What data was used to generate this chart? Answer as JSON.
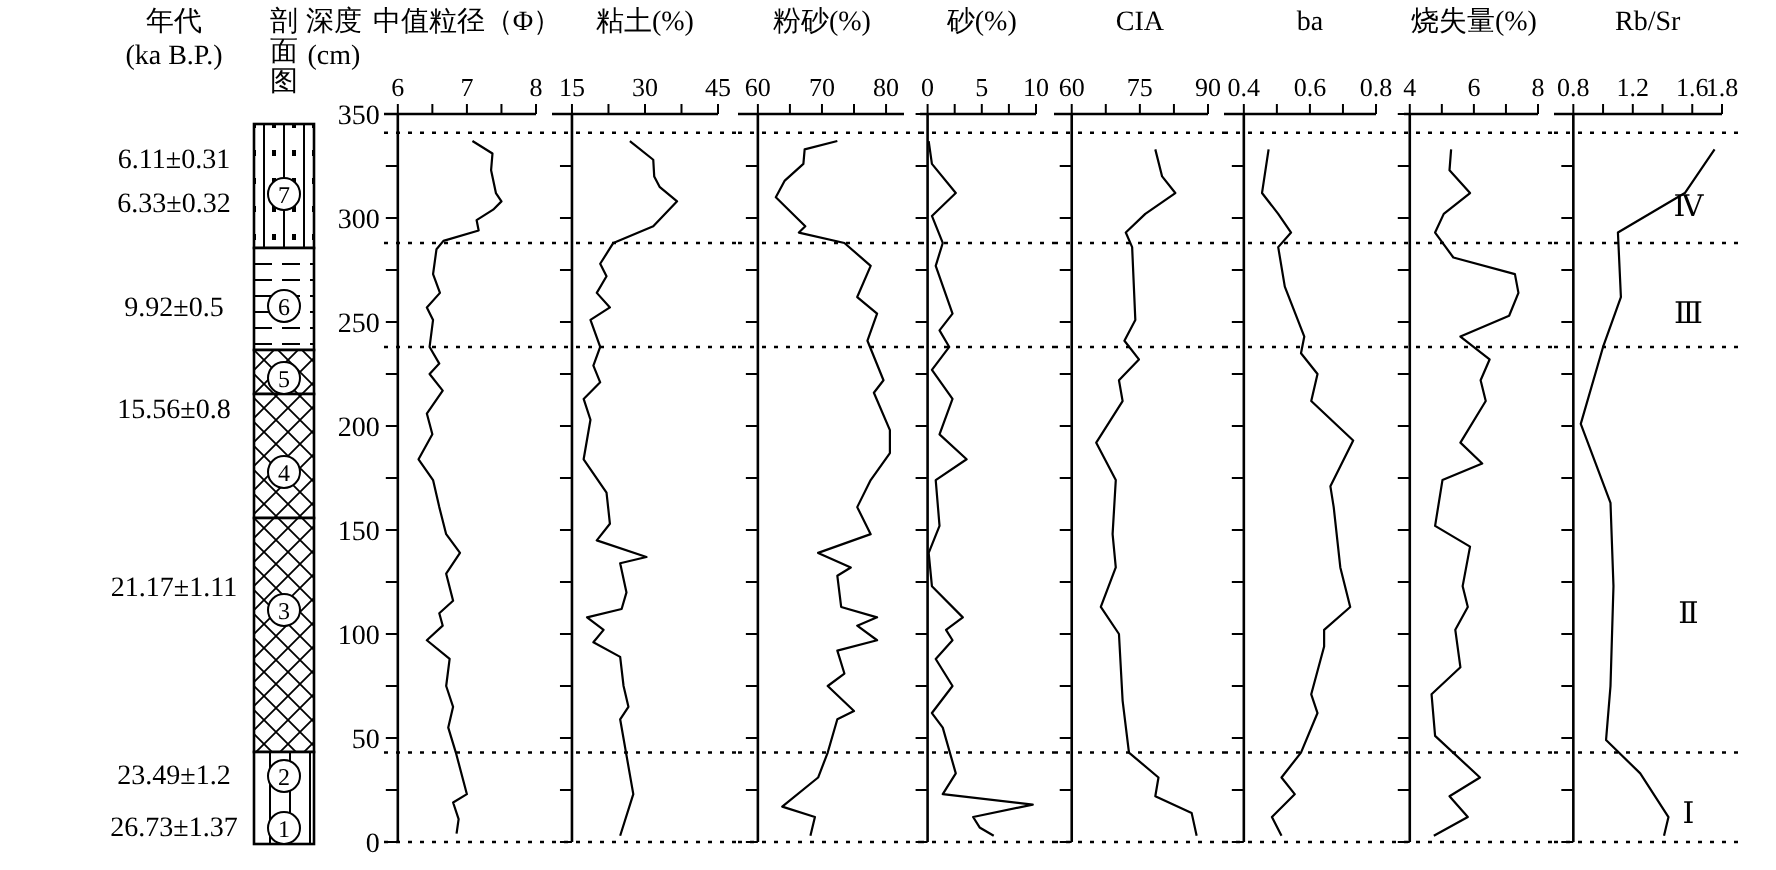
{
  "chart_data": [
    {
      "type": "other",
      "title": "年代\n(ka B.P.)",
      "annotations": [
        "6.11±0.31",
        "6.33±0.32",
        "9.92±0.5",
        "15.56±0.8",
        "21.17±1.11",
        "23.49±1.2",
        "26.73±1.37"
      ]
    },
    {
      "type": "other",
      "title": "剖面图",
      "annotations": [
        "7",
        "6",
        "5",
        "4",
        "3",
        "2",
        "1"
      ]
    },
    {
      "type": "line",
      "title": "中值粒径（Φ）",
      "ylabel": "深度\n(cm)",
      "xlim": [
        5.8,
        8
      ],
      "ylim": [
        0,
        350
      ],
      "xticks": [
        6,
        {
          "value": 6.5,
          "label": null
        },
        7,
        {
          "value": 7.5,
          "label": null
        },
        8
      ],
      "yticks": [
        0,
        {
          "value": 25,
          "label": null
        },
        50,
        {
          "value": 75,
          "label": null
        },
        100,
        {
          "value": 125,
          "label": null
        },
        150,
        {
          "value": 175,
          "label": null
        },
        200,
        {
          "value": 225,
          "label": null
        },
        250,
        {
          "value": 275,
          "label": null
        },
        300,
        {
          "value": 325,
          "label": null
        },
        350
      ],
      "ref_lines": [
        {
          "axis": "y",
          "value": 341
        },
        {
          "axis": "y",
          "value": 288
        },
        {
          "axis": "y",
          "value": 238
        },
        {
          "axis": "y",
          "value": 43
        },
        {
          "axis": "y",
          "value": 0
        }
      ],
      "x": [
        7.08,
        7.37,
        7.35,
        7.42,
        7.5,
        7.38,
        7.14,
        7.17,
        6.66,
        6.56,
        6.51,
        6.61,
        6.42,
        6.51,
        6.46,
        6.6,
        6.46,
        6.65,
        6.42,
        6.5,
        6.3,
        6.51,
        6.6,
        6.7,
        6.9,
        6.7,
        6.8,
        6.6,
        6.65,
        6.42,
        6.75,
        6.7,
        6.8,
        6.73,
        6.84,
        7.0,
        6.8,
        6.88,
        6.85
      ],
      "values": [
        337,
        331,
        323,
        312,
        308,
        304,
        299,
        294,
        289,
        285,
        273,
        264,
        257,
        251,
        238,
        230,
        225,
        217,
        206,
        196,
        184,
        174,
        161,
        148,
        139,
        129,
        116,
        110,
        104,
        97,
        88,
        75,
        65,
        55,
        43,
        23,
        19,
        11,
        4
      ]
    },
    {
      "type": "line",
      "title": "粘土(%)",
      "tick_labels": "x",
      "xlim": [
        10.9,
        45
      ],
      "ylim": [
        0,
        350
      ],
      "xticks": [
        15,
        {
          "value": 22.5,
          "label": null
        },
        30,
        {
          "value": 37.5,
          "label": null
        },
        45
      ],
      "yticks": [
        0,
        {
          "value": 25,
          "label": null
        },
        50,
        {
          "value": 75,
          "label": null
        },
        100,
        {
          "value": 125,
          "label": null
        },
        150,
        {
          "value": 175,
          "label": null
        },
        200,
        {
          "value": 225,
          "label": null
        },
        250,
        {
          "value": 275,
          "label": null
        },
        300,
        {
          "value": 325,
          "label": null
        },
        350
      ],
      "ref_lines": [
        {
          "axis": "y",
          "value": 341
        },
        {
          "axis": "y",
          "value": 288
        },
        {
          "axis": "y",
          "value": 238
        },
        {
          "axis": "y",
          "value": 43
        },
        {
          "axis": "y",
          "value": 0
        }
      ],
      "x": [
        26.9,
        31.7,
        31.9,
        33,
        36.6,
        31.7,
        23.5,
        20.8,
        22.1,
        20.1,
        22.8,
        18.8,
        20.8,
        19.4,
        20.8,
        17.4,
        18.8,
        17.4,
        22.1,
        22.8,
        20.1,
        30.3,
        24.9,
        26.2,
        25.2,
        18.1,
        21.5,
        19.4,
        24.9,
        25.6,
        26.6,
        24.9,
        27.6,
        24.9
      ],
      "values": [
        337,
        328,
        320,
        315,
        308,
        296,
        288,
        278,
        272,
        264,
        257,
        251,
        238,
        229,
        221,
        213,
        203,
        184,
        168,
        153,
        145,
        137,
        134,
        120,
        112,
        108,
        102,
        96,
        89,
        75,
        65,
        59,
        23,
        3
      ]
    },
    {
      "type": "line",
      "title": "粉砂(%)",
      "tick_labels": "x",
      "xlim": [
        56.9,
        82.8
      ],
      "ylim": [
        0,
        350
      ],
      "xticks": [
        60,
        {
          "value": 65,
          "label": null
        },
        70,
        {
          "value": 75,
          "label": null
        },
        80
      ],
      "yticks": [
        0,
        {
          "value": 25,
          "label": null
        },
        50,
        {
          "value": 75,
          "label": null
        },
        100,
        {
          "value": 125,
          "label": null
        },
        150,
        {
          "value": 175,
          "label": null
        },
        200,
        {
          "value": 225,
          "label": null
        },
        250,
        {
          "value": 275,
          "label": null
        },
        300,
        {
          "value": 325,
          "label": null
        },
        350
      ],
      "ref_lines": [
        {
          "axis": "y",
          "value": 341
        },
        {
          "axis": "y",
          "value": 288
        },
        {
          "axis": "y",
          "value": 238
        },
        {
          "axis": "y",
          "value": 43
        },
        {
          "axis": "y",
          "value": 0
        }
      ],
      "x": [
        72.4,
        67.3,
        67.1,
        64.2,
        62.8,
        67.4,
        66.4,
        73.5,
        77.6,
        75.5,
        78.6,
        77.1,
        79.6,
        78.1,
        80.6,
        80.6,
        77.6,
        75.5,
        77.6,
        69.4,
        74.5,
        72.4,
        73,
        78.6,
        75.5,
        78.6,
        72.4,
        73.5,
        70.9,
        75,
        72.4,
        70.9,
        69.4,
        63.8,
        68.9,
        68.2
      ],
      "values": [
        337,
        333,
        326,
        318,
        310,
        296,
        293,
        288,
        277,
        262,
        254,
        241,
        222,
        216,
        198,
        187,
        174,
        161,
        148,
        139,
        132,
        128,
        113,
        108,
        104,
        97,
        92,
        81,
        75,
        63,
        59,
        43,
        31,
        17,
        12,
        3
      ]
    },
    {
      "type": "line",
      "title": "砂(%)",
      "tick_labels": "x",
      "xlim": [
        -0.7,
        10
      ],
      "ylim": [
        0,
        350
      ],
      "xticks": [
        0,
        {
          "value": 2.5,
          "label": null
        },
        5,
        {
          "value": 7.5,
          "label": null
        },
        10
      ],
      "yticks": [
        0,
        {
          "value": 25,
          "label": null
        },
        50,
        {
          "value": 75,
          "label": null
        },
        100,
        {
          "value": 125,
          "label": null
        },
        150,
        {
          "value": 175,
          "label": null
        },
        200,
        {
          "value": 225,
          "label": null
        },
        250,
        {
          "value": 275,
          "label": null
        },
        300,
        {
          "value": 325,
          "label": null
        },
        350
      ],
      "ref_lines": [
        {
          "axis": "y",
          "value": 341
        },
        {
          "axis": "y",
          "value": 288
        },
        {
          "axis": "y",
          "value": 238
        },
        {
          "axis": "y",
          "value": 43
        },
        {
          "axis": "y",
          "value": 0
        }
      ],
      "x": [
        0.1,
        0.4,
        2.6,
        0.4,
        1.4,
        0.75,
        2.3,
        1.1,
        2.0,
        0.4,
        2.3,
        1.1,
        3.6,
        0.75,
        1.1,
        0.1,
        0.4,
        3.25,
        1.7,
        2.3,
        0.75,
        2.3,
        0.4,
        1.4,
        2.6,
        1.4,
        9.7,
        4.2,
        4.8,
        6.1
      ],
      "values": [
        337,
        326,
        312,
        301,
        288,
        277,
        254,
        246,
        238,
        227,
        213,
        196,
        184,
        174,
        152,
        139,
        123,
        108,
        102,
        97,
        88,
        75,
        62,
        55,
        33,
        23,
        18,
        12,
        7,
        3
      ]
    },
    {
      "type": "line",
      "title": "CIA",
      "tick_labels": "x",
      "xlim": [
        56.1,
        90
      ],
      "ylim": [
        0,
        350
      ],
      "xticks": [
        60,
        {
          "value": 67.5,
          "label": null
        },
        75,
        {
          "value": 82.5,
          "label": null
        },
        90
      ],
      "yticks": [
        0,
        {
          "value": 25,
          "label": null
        },
        50,
        {
          "value": 75,
          "label": null
        },
        100,
        {
          "value": 125,
          "label": null
        },
        150,
        {
          "value": 175,
          "label": null
        },
        200,
        {
          "value": 225,
          "label": null
        },
        250,
        {
          "value": 275,
          "label": null
        },
        300,
        {
          "value": 325,
          "label": null
        },
        350
      ],
      "ref_lines": [
        {
          "axis": "y",
          "value": 341
        },
        {
          "axis": "y",
          "value": 288
        },
        {
          "axis": "y",
          "value": 238
        },
        {
          "axis": "y",
          "value": 43
        },
        {
          "axis": "y",
          "value": 0
        }
      ],
      "x": [
        78.4,
        79.9,
        82.8,
        76.2,
        71.9,
        73.3,
        74,
        71.6,
        74.8,
        70.4,
        71.2,
        65.4,
        69.7,
        69,
        69.7,
        66.4,
        70.4,
        71.2,
        72.6,
        79.1,
        78.4,
        86.4,
        87.5
      ],
      "values": [
        333,
        320,
        312,
        302,
        293,
        286,
        251,
        241,
        232,
        222,
        212,
        192,
        174,
        148,
        132,
        113,
        100,
        68,
        43,
        31,
        22,
        14,
        3
      ]
    },
    {
      "type": "line",
      "title": "ba",
      "tick_labels": "x",
      "xlim": [
        0.34,
        0.8
      ],
      "ylim": [
        0,
        350
      ],
      "xticks": [
        0.4,
        {
          "value": 0.5,
          "label": null
        },
        0.6,
        {
          "value": 0.7,
          "label": null
        },
        0.8
      ],
      "yticks": [
        0,
        {
          "value": 25,
          "label": null
        },
        50,
        {
          "value": 75,
          "label": null
        },
        100,
        {
          "value": 125,
          "label": null
        },
        150,
        {
          "value": 175,
          "label": null
        },
        200,
        {
          "value": 225,
          "label": null
        },
        250,
        {
          "value": 275,
          "label": null
        },
        300,
        {
          "value": 325,
          "label": null
        },
        350
      ],
      "ref_lines": [
        {
          "axis": "y",
          "value": 341
        },
        {
          "axis": "y",
          "value": 288
        },
        {
          "axis": "y",
          "value": 238
        },
        {
          "axis": "y",
          "value": 43
        },
        {
          "axis": "y",
          "value": 0
        }
      ],
      "x": [
        0.475,
        0.455,
        0.504,
        0.543,
        0.504,
        0.524,
        0.583,
        0.573,
        0.623,
        0.604,
        0.731,
        0.662,
        0.672,
        0.692,
        0.722,
        0.643,
        0.643,
        0.604,
        0.623,
        0.573,
        0.514,
        0.554,
        0.485,
        0.514
      ],
      "values": [
        333,
        312,
        302,
        293,
        286,
        267,
        243,
        235,
        225,
        212,
        193,
        171,
        161,
        132,
        113,
        102,
        94,
        71,
        62,
        43,
        31,
        23,
        12,
        3
      ]
    },
    {
      "type": "line",
      "title": "烧失量(%)",
      "tick_labels": "x",
      "xlim": [
        3.82,
        8
      ],
      "ylim": [
        0,
        350
      ],
      "xticks": [
        4,
        {
          "value": 5,
          "label": null
        },
        6,
        {
          "value": 7,
          "label": null
        },
        8
      ],
      "yticks": [
        0,
        {
          "value": 25,
          "label": null
        },
        50,
        {
          "value": 75,
          "label": null
        },
        100,
        {
          "value": 125,
          "label": null
        },
        150,
        {
          "value": 175,
          "label": null
        },
        200,
        {
          "value": 225,
          "label": null
        },
        250,
        {
          "value": 275,
          "label": null
        },
        300,
        {
          "value": 325,
          "label": null
        },
        350
      ],
      "ref_lines": [
        {
          "axis": "y",
          "value": 341
        },
        {
          "axis": "y",
          "value": 288
        },
        {
          "axis": "y",
          "value": 238
        },
        {
          "axis": "y",
          "value": 43
        },
        {
          "axis": "y",
          "value": 0
        }
      ],
      "x": [
        5.29,
        5.24,
        5.88,
        5.06,
        4.79,
        5.36,
        7.28,
        7.39,
        7.1,
        5.58,
        6.49,
        6.21,
        6.37,
        5.58,
        6.26,
        5.02,
        4.79,
        5.88,
        5.65,
        5.81,
        5.42,
        5.58,
        4.68,
        4.79,
        6.19,
        5.24,
        5.81,
        4.75
      ],
      "values": [
        333,
        323,
        312,
        302,
        293,
        281,
        273,
        264,
        253,
        243,
        232,
        222,
        212,
        192,
        182,
        174,
        152,
        142,
        123,
        113,
        102,
        84,
        71,
        51,
        31,
        22,
        12,
        3
      ]
    },
    {
      "type": "line",
      "title": "Rb/Sr",
      "tick_labels": "x",
      "xlim": [
        0.67,
        1.8
      ],
      "ylim": [
        0,
        350
      ],
      "xticks": [
        0.8,
        {
          "value": 1.0,
          "label": null
        },
        1.2,
        {
          "value": 1.4,
          "label": null
        },
        1.6,
        1.8
      ],
      "yticks": [
        0,
        {
          "value": 25,
          "label": null
        },
        50,
        {
          "value": 75,
          "label": null
        },
        100,
        {
          "value": 125,
          "label": null
        },
        150,
        {
          "value": 175,
          "label": null
        },
        200,
        {
          "value": 225,
          "label": null
        },
        250,
        {
          "value": 275,
          "label": null
        },
        300,
        {
          "value": 325,
          "label": null
        },
        350
      ],
      "ref_lines": [
        {
          "axis": "y",
          "value": 341
        },
        {
          "axis": "y",
          "value": 288
        },
        {
          "axis": "y",
          "value": 238
        },
        {
          "axis": "y",
          "value": 43
        },
        {
          "axis": "y",
          "value": 0
        }
      ],
      "annotations": [
        "Ⅳ",
        "Ⅲ",
        "Ⅱ",
        "Ⅰ"
      ],
      "x": [
        1.75,
        1.55,
        1.1,
        1.12,
        1.0,
        0.85,
        1.05,
        1.07,
        1.05,
        1.02,
        1.25,
        1.44,
        1.41
      ],
      "values": [
        333,
        312,
        293,
        262,
        238,
        201,
        163,
        123,
        75,
        49,
        33,
        12,
        3
      ]
    }
  ]
}
